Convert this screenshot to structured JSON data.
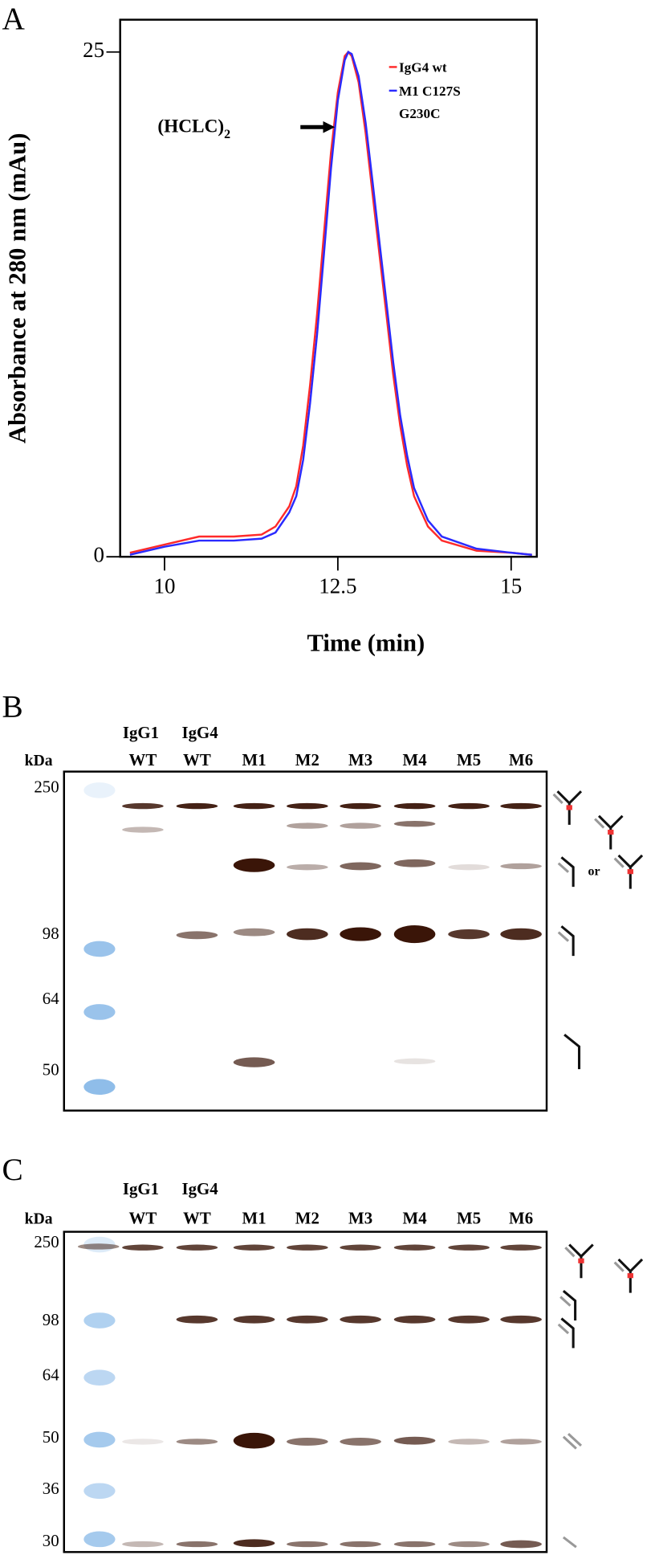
{
  "chart_data": {
    "type": "line",
    "panel_label": "A",
    "xlabel": "Time (min)",
    "ylabel": "Absorbance at 280 nm (mAu)",
    "annotation": {
      "text": "(HCLC)",
      "subscript": "2"
    },
    "xlim": [
      9.36,
      15.37
    ],
    "ylim": [
      0,
      26.6
    ],
    "xticks": [
      10,
      12.5,
      15
    ],
    "yticks": [
      0,
      25
    ],
    "legend": "upper right",
    "x": [
      9.5,
      10,
      10.5,
      11,
      11.4,
      11.6,
      11.8,
      11.9,
      12.0,
      12.1,
      12.2,
      12.3,
      12.4,
      12.5,
      12.6,
      12.65,
      12.7,
      12.8,
      12.9,
      13.0,
      13.1,
      13.2,
      13.3,
      13.4,
      13.5,
      13.6,
      13.8,
      14.0,
      14.5,
      15.0,
      15.3
    ],
    "series": [
      {
        "name": "IgG4 wt",
        "color": "#ff2a2a",
        "values": [
          0.2,
          0.6,
          1.0,
          1.0,
          1.1,
          1.5,
          2.5,
          3.5,
          5.5,
          8.5,
          12.0,
          16.0,
          20.0,
          23.0,
          24.8,
          25.0,
          24.8,
          23.5,
          21.0,
          18.0,
          15.0,
          12.0,
          9.0,
          6.5,
          4.5,
          3.0,
          1.5,
          0.8,
          0.3,
          0.2,
          0.1
        ]
      },
      {
        "name": "M1 C127S G230C",
        "color": "#2a2aff",
        "values": [
          0.1,
          0.5,
          0.8,
          0.8,
          0.9,
          1.2,
          2.2,
          3.0,
          4.8,
          7.6,
          11.0,
          15.0,
          19.2,
          22.6,
          24.6,
          25.0,
          24.9,
          23.8,
          21.5,
          18.6,
          15.6,
          12.6,
          9.6,
          7.0,
          5.0,
          3.4,
          1.8,
          1.0,
          0.4,
          0.2,
          0.1
        ]
      }
    ]
  },
  "gels": [
    {
      "panel_label": "B",
      "unit_label": "kDa",
      "header_row1": [
        "IgG1",
        "IgG4"
      ],
      "header_row2": [
        "WT",
        "WT",
        "M1",
        "M2",
        "M3",
        "M4",
        "M5",
        "M6"
      ],
      "markers": [
        250,
        98,
        64,
        50
      ],
      "icon_text": "or"
    },
    {
      "panel_label": "C",
      "unit_label": "kDa",
      "header_row1": [
        "IgG1",
        "IgG4"
      ],
      "header_row2": [
        "WT",
        "WT",
        "M1",
        "M2",
        "M3",
        "M4",
        "M5",
        "M6"
      ],
      "markers": [
        250,
        98,
        64,
        50,
        36,
        30
      ]
    }
  ]
}
